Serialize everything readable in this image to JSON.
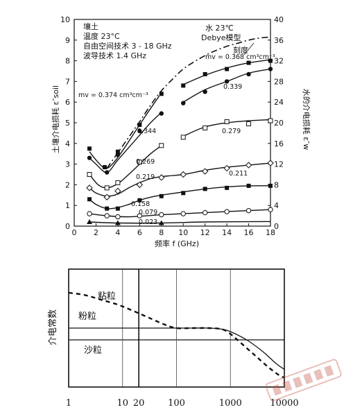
{
  "chart_data": [
    {
      "type": "line",
      "x_ticks": [
        "0",
        "2",
        "4",
        "6",
        "8",
        "10",
        "12",
        "14",
        "16",
        "18"
      ],
      "y_left_ticks": [
        "0",
        "1",
        "2",
        "3",
        "4",
        "5",
        "6",
        "7",
        "8",
        "9",
        "10"
      ],
      "y_right_ticks": [
        "0",
        "4",
        "8",
        "12",
        "16",
        "20",
        "24",
        "28",
        "32",
        "36",
        "40"
      ],
      "xlim": [
        0,
        18
      ],
      "ylim": [
        0,
        10
      ],
      "y_right_lim": [
        0,
        40
      ],
      "xlabel": "频率  f (GHz)",
      "ylabel_left": "土壤介电损耗  ε″soil",
      "ylabel_right": "水的介电损耗  ε″w",
      "legend_lines": [
        "壤土",
        "温度 23°C",
        "自由空间技术  3 - 18 GHz",
        "波导技术      1.4 GHz"
      ],
      "water_label_lines": [
        "水 23℃",
        "Debye模型"
      ],
      "scale_label": "刻度",
      "water_curve": {
        "x": [
          3.0,
          4,
          5,
          6,
          7,
          8,
          9,
          10,
          11,
          12,
          13,
          14,
          15,
          16,
          17,
          18
        ],
        "y": [
          2.8,
          3.55,
          4.3,
          5.05,
          5.85,
          6.55,
          7.1,
          7.6,
          7.95,
          8.25,
          8.5,
          8.7,
          8.85,
          9.0,
          9.1,
          9.15
        ]
      },
      "series": [
        {
          "label": "mv = 0.374 cm³cm⁻³",
          "curve": {
            "x": [
              1.4,
              2,
              2.8,
              3.5,
              4.5,
              5.5,
              6.5,
              7.8
            ],
            "y": [
              3.6,
              3.2,
              2.8,
              3.0,
              3.7,
              4.5,
              5.3,
              6.3
            ]
          },
          "markers": {
            "shape": "filled-square",
            "x": [
              1.4,
              2.8,
              4.0,
              6.0,
              8.0
            ],
            "y": [
              3.75,
              2.85,
              3.6,
              4.9,
              6.4
            ]
          }
        },
        {
          "label": "mv = 0.368 cm³cm⁻³",
          "curve": {
            "x": [
              10,
              12,
              14,
              16,
              18
            ],
            "y": [
              6.85,
              7.3,
              7.65,
              7.9,
              8.05
            ]
          },
          "markers": {
            "shape": "filled-square",
            "x": [
              10,
              12,
              14,
              16,
              18
            ],
            "y": [
              6.8,
              7.35,
              7.6,
              7.9,
              8.0
            ]
          }
        },
        {
          "label": "0.344",
          "curve": {
            "x": [
              1.4,
              2,
              3.0,
              4,
              5,
              6,
              7,
              8
            ],
            "y": [
              3.3,
              3.0,
              2.6,
              3.2,
              3.8,
              4.4,
              5.0,
              5.5
            ]
          },
          "markers": {
            "shape": "filled-circle",
            "x": [
              1.4,
              3.0,
              4.0,
              6.0,
              8.0
            ],
            "y": [
              3.3,
              2.6,
              3.45,
              4.6,
              5.45
            ]
          }
        },
        {
          "label": "0.339",
          "curve": {
            "x": [
              10,
              12,
              14,
              16,
              18
            ],
            "y": [
              6.0,
              6.6,
              7.0,
              7.4,
              7.6
            ]
          },
          "markers": {
            "shape": "filled-circle",
            "x": [
              10,
              12,
              14,
              16,
              18
            ],
            "y": [
              5.95,
              6.5,
              7.0,
              7.35,
              7.6
            ]
          }
        },
        {
          "label": "0.269",
          "curve": {
            "x": [
              1.4,
              2.2,
              3.0,
              4,
              5,
              6,
              7,
              8
            ],
            "y": [
              2.5,
              2.0,
              1.85,
              2.05,
              2.5,
              3.0,
              3.5,
              3.9
            ]
          },
          "markers": {
            "shape": "open-square",
            "x": [
              1.4,
              3.0,
              4.0,
              6.0,
              8.0
            ],
            "y": [
              2.5,
              1.85,
              2.1,
              3.1,
              3.9
            ]
          }
        },
        {
          "label": "0.279",
          "curve": {
            "x": [
              10,
              12,
              14,
              16,
              18
            ],
            "y": [
              4.35,
              4.8,
              5.0,
              5.1,
              5.15
            ]
          },
          "markers": {
            "shape": "open-square",
            "x": [
              10,
              12,
              14,
              16,
              18
            ],
            "y": [
              4.3,
              4.75,
              5.05,
              4.95,
              5.1
            ]
          }
        },
        {
          "label": "0.219",
          "curve": {
            "x": [
              1.4,
              2,
              3,
              4,
              5,
              6,
              7,
              8
            ],
            "y": [
              1.85,
              1.6,
              1.45,
              1.55,
              1.85,
              2.1,
              2.3,
              2.4
            ]
          },
          "markers": {
            "shape": "open-diamond",
            "x": [
              1.4,
              3.0,
              4.0,
              6.0,
              8.0
            ],
            "y": [
              1.85,
              1.4,
              1.7,
              2.0,
              2.35
            ]
          }
        },
        {
          "label": "0.211",
          "curve": {
            "x": [
              8,
              10,
              12,
              14,
              16,
              18
            ],
            "y": [
              2.4,
              2.5,
              2.7,
              2.85,
              2.95,
              3.05
            ]
          },
          "markers": {
            "shape": "open-diamond",
            "x": [
              10,
              12,
              14,
              16,
              18
            ],
            "y": [
              2.5,
              2.65,
              2.8,
              2.95,
              3.05
            ]
          }
        },
        {
          "label": "0.158",
          "curve": {
            "x": [
              1.4,
              2,
              3,
              4,
              5,
              6,
              7,
              8,
              10,
              12,
              14,
              16,
              18
            ],
            "y": [
              1.3,
              1.05,
              0.85,
              0.9,
              1.05,
              1.25,
              1.4,
              1.5,
              1.65,
              1.8,
              1.9,
              1.95,
              1.95
            ]
          },
          "markers": {
            "shape": "filled-square",
            "x": [
              1.4,
              3.0,
              4.0,
              6.0,
              8.0,
              10,
              12,
              14,
              16,
              18
            ],
            "y": [
              1.3,
              0.85,
              0.85,
              1.25,
              1.45,
              1.6,
              1.8,
              1.85,
              1.95,
              1.95
            ]
          }
        },
        {
          "label": "0.079",
          "curve": {
            "x": [
              1.4,
              3,
              5,
              8,
              10,
              12,
              14,
              16,
              18
            ],
            "y": [
              0.6,
              0.5,
              0.45,
              0.55,
              0.6,
              0.65,
              0.7,
              0.75,
              0.8
            ]
          },
          "markers": {
            "shape": "open-circle",
            "x": [
              1.4,
              3.0,
              4.0,
              6.0,
              8.0,
              10,
              12,
              14,
              16,
              18
            ],
            "y": [
              0.6,
              0.5,
              0.45,
              0.5,
              0.55,
              0.6,
              0.65,
              0.7,
              0.75,
              0.8
            ]
          }
        },
        {
          "label": "0.023",
          "curve": {
            "x": [
              1.4,
              4,
              8,
              12,
              18
            ],
            "y": [
              0.2,
              0.15,
              0.15,
              0.2,
              0.22
            ]
          },
          "markers": {
            "shape": "filled-triangle",
            "x": [
              1.4,
              4.0,
              8.0
            ],
            "y": [
              0.2,
              0.15,
              0.15
            ]
          }
        }
      ]
    },
    {
      "type": "line",
      "x_scale": "log",
      "xlim": [
        1,
        10000
      ],
      "x_ticks": [
        "1",
        "10",
        "20",
        "100",
        "1000",
        "10000"
      ],
      "ylabel": "介电常数",
      "series": [
        {
          "name": "粘粒",
          "style": "dashed",
          "x": [
            1,
            2,
            4,
            8,
            15,
            30,
            60,
            100,
            200,
            400,
            700,
            1000,
            2000,
            3000,
            5000,
            8000,
            10000
          ],
          "y": [
            0.8,
            0.78,
            0.74,
            0.7,
            0.65,
            0.59,
            0.53,
            0.5,
            0.5,
            0.5,
            0.49,
            0.45,
            0.33,
            0.26,
            0.17,
            0.1,
            0.08
          ]
        },
        {
          "name": "粉粒",
          "style": "solid",
          "x": [
            100,
            200,
            400,
            700,
            1000,
            2000,
            4000,
            7000,
            10000
          ],
          "y": [
            0.5,
            0.5,
            0.5,
            0.49,
            0.47,
            0.4,
            0.3,
            0.2,
            0.15
          ]
        },
        {
          "name": "沙粒",
          "style": "solid-horizontal",
          "x": [
            1,
            100
          ],
          "y": [
            0.5,
            0.5
          ]
        }
      ]
    }
  ]
}
